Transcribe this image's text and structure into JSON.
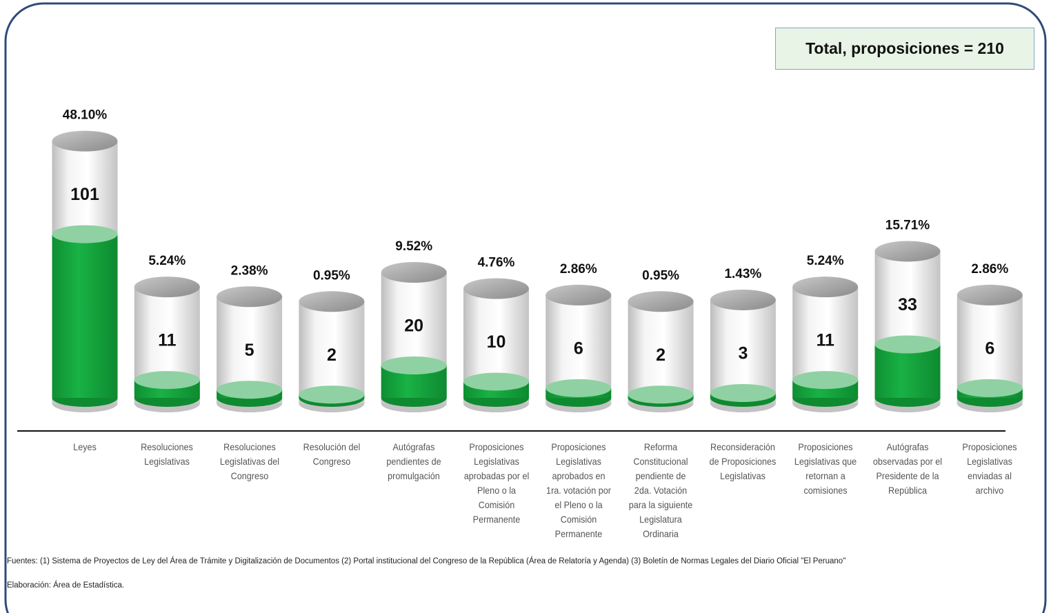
{
  "chart_data": {
    "type": "cylinder",
    "total_label": "Total, proposiciones = 210",
    "categories": [
      "Leyes",
      "Resoluciones Legislativas",
      "Resoluciones Legislativas del Congreso",
      "Resolución del Congreso",
      "Autógrafas pendientes de promulgación",
      "Proposiciones Legislativas aprobadas por el Pleno o la Comisión Permanente",
      "Proposiciones Legislativas aprobados en 1ra. votación por el Pleno o la Comisión Permanente",
      "Reforma Constitucional pendiente de 2da. Votación para la siguiente Legislatura Ordinaria",
      "Reconsideración de Proposiciones Legislativas",
      "Proposiciones Legislativas que retornan a comisiones",
      "Autógrafas observadas por el Presidente de la República",
      "Proposiciones Legislativas enviadas al archivo"
    ],
    "values": [
      101,
      11,
      5,
      2,
      20,
      10,
      6,
      2,
      3,
      11,
      33,
      6
    ],
    "percent_labels": [
      "48.10%",
      "5.24%",
      "2.38%",
      "0.95%",
      "9.52%",
      "4.76%",
      "2.86%",
      "0.95%",
      "1.43%",
      "5.24%",
      "15.71%",
      "2.86%"
    ],
    "color": "#19b245",
    "source": "Fuentes: (1) Sistema de Proyectos de Ley del Área de Trámite y Digitalización de Documentos (2) Portal institucional del Congreso de la República (Área de Relatoría y Agenda) (3) Boletín de Normas Legales del Diario Oficial \"El Peruano\"",
    "credit": "Elaboración: Área de Estadística."
  }
}
